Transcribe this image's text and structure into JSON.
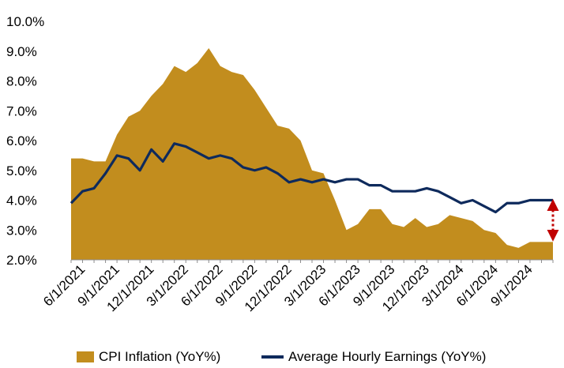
{
  "colors": {
    "cpi_fill": "#C28D1E",
    "earnings_line": "#0E2A5C",
    "gap_arrow": "#C00000"
  },
  "chart_data": {
    "type": "area",
    "title": "",
    "xlabel": "",
    "ylabel": "",
    "ylim": [
      2.0,
      10.0
    ],
    "y_ticks": [
      "2.0%",
      "3.0%",
      "4.0%",
      "5.0%",
      "6.0%",
      "7.0%",
      "8.0%",
      "9.0%",
      "10.0%"
    ],
    "x_tick_labels": [
      "6/1/2021",
      "9/1/2021",
      "12/1/2021",
      "3/1/2022",
      "6/1/2022",
      "9/1/2022",
      "12/1/2022",
      "3/1/2023",
      "6/1/2023",
      "9/1/2023",
      "12/1/2023",
      "3/1/2024",
      "6/1/2024",
      "9/1/2024"
    ],
    "x": [
      "5/1/2021",
      "6/1/2021",
      "7/1/2021",
      "8/1/2021",
      "9/1/2021",
      "10/1/2021",
      "11/1/2021",
      "12/1/2021",
      "1/1/2022",
      "2/1/2022",
      "3/1/2022",
      "4/1/2022",
      "5/1/2022",
      "6/1/2022",
      "7/1/2022",
      "8/1/2022",
      "9/1/2022",
      "10/1/2022",
      "11/1/2022",
      "12/1/2022",
      "1/1/2023",
      "2/1/2023",
      "3/1/2023",
      "4/1/2023",
      "5/1/2023",
      "6/1/2023",
      "7/1/2023",
      "8/1/2023",
      "9/1/2023",
      "10/1/2023",
      "11/1/2023",
      "12/1/2023",
      "1/1/2024",
      "2/1/2024",
      "3/1/2024",
      "4/1/2024",
      "5/1/2024",
      "6/1/2024",
      "7/1/2024",
      "8/1/2024",
      "9/1/2024",
      "10/1/2024",
      "11/1/2024"
    ],
    "series": [
      {
        "name": "CPI Inflation (YoY%)",
        "kind": "area",
        "values": [
          5.4,
          5.4,
          5.3,
          5.3,
          6.2,
          6.8,
          7.0,
          7.5,
          7.9,
          8.5,
          8.3,
          8.6,
          9.1,
          8.5,
          8.3,
          8.2,
          7.7,
          7.1,
          6.5,
          6.4,
          6.0,
          5.0,
          4.9,
          4.0,
          3.0,
          3.2,
          3.7,
          3.7,
          3.2,
          3.1,
          3.4,
          3.1,
          3.2,
          3.5,
          3.4,
          3.3,
          3.0,
          2.9,
          2.5,
          2.4,
          2.6,
          2.6,
          2.6
        ]
      },
      {
        "name": "Average Hourly Earnings (YoY%)",
        "kind": "line",
        "values": [
          3.9,
          4.3,
          4.4,
          4.9,
          5.5,
          5.4,
          5.0,
          5.7,
          5.3,
          5.9,
          5.8,
          5.6,
          5.4,
          5.5,
          5.4,
          5.1,
          5.0,
          5.1,
          4.9,
          4.6,
          4.7,
          4.6,
          4.7,
          4.6,
          4.7,
          4.7,
          4.5,
          4.5,
          4.3,
          4.3,
          4.3,
          4.4,
          4.3,
          4.1,
          3.9,
          4.0,
          3.8,
          3.6,
          3.9,
          3.9,
          4.0,
          4.0,
          4.0
        ]
      }
    ],
    "annotations": [
      {
        "type": "double-arrow",
        "x": "11/1/2024",
        "from": 2.6,
        "to": 4.0
      }
    ],
    "grid": false,
    "legend": "bottom"
  }
}
